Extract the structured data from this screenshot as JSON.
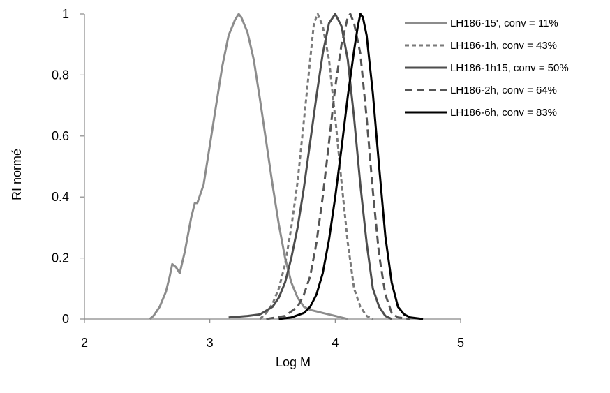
{
  "chart_data": {
    "type": "line",
    "xlabel": "Log M",
    "ylabel": "RI normé",
    "xlim": [
      2,
      5
    ],
    "ylim": [
      0,
      1
    ],
    "x_ticks": [
      "2",
      "3",
      "4",
      "5"
    ],
    "y_ticks": [
      "0",
      "0.2",
      "0.4",
      "0.6",
      "0.8",
      "1"
    ],
    "grid": false,
    "legend_position": "top-right",
    "series": [
      {
        "name": "LH186-15', conv = 11%",
        "color": "#8c8c8c",
        "dash": "solid",
        "points": [
          [
            2.52,
            0.0
          ],
          [
            2.55,
            0.01
          ],
          [
            2.6,
            0.04
          ],
          [
            2.65,
            0.09
          ],
          [
            2.68,
            0.14
          ],
          [
            2.7,
            0.18
          ],
          [
            2.73,
            0.17
          ],
          [
            2.76,
            0.15
          ],
          [
            2.8,
            0.22
          ],
          [
            2.85,
            0.33
          ],
          [
            2.88,
            0.38
          ],
          [
            2.9,
            0.38
          ],
          [
            2.95,
            0.44
          ],
          [
            3.0,
            0.57
          ],
          [
            3.05,
            0.7
          ],
          [
            3.1,
            0.83
          ],
          [
            3.15,
            0.93
          ],
          [
            3.2,
            0.98
          ],
          [
            3.23,
            1.0
          ],
          [
            3.25,
            0.99
          ],
          [
            3.3,
            0.94
          ],
          [
            3.35,
            0.85
          ],
          [
            3.4,
            0.72
          ],
          [
            3.45,
            0.58
          ],
          [
            3.5,
            0.44
          ],
          [
            3.55,
            0.31
          ],
          [
            3.6,
            0.2
          ],
          [
            3.65,
            0.12
          ],
          [
            3.7,
            0.07
          ],
          [
            3.75,
            0.04
          ],
          [
            3.8,
            0.03
          ],
          [
            3.85,
            0.025
          ],
          [
            3.9,
            0.02
          ],
          [
            3.95,
            0.015
          ],
          [
            4.0,
            0.01
          ],
          [
            4.05,
            0.005
          ],
          [
            4.1,
            0.0
          ]
        ]
      },
      {
        "name": "LH186-1h, conv = 43%",
        "color": "#7a7a7a",
        "dash": "short",
        "points": [
          [
            3.4,
            0.0
          ],
          [
            3.45,
            0.02
          ],
          [
            3.5,
            0.05
          ],
          [
            3.55,
            0.1
          ],
          [
            3.6,
            0.18
          ],
          [
            3.65,
            0.3
          ],
          [
            3.7,
            0.45
          ],
          [
            3.75,
            0.65
          ],
          [
            3.8,
            0.85
          ],
          [
            3.83,
            0.97
          ],
          [
            3.86,
            1.0
          ],
          [
            3.9,
            0.96
          ],
          [
            3.95,
            0.85
          ],
          [
            4.0,
            0.66
          ],
          [
            4.05,
            0.45
          ],
          [
            4.1,
            0.25
          ],
          [
            4.15,
            0.1
          ],
          [
            4.2,
            0.04
          ],
          [
            4.25,
            0.01
          ],
          [
            4.3,
            0.0
          ]
        ]
      },
      {
        "name": "LH186-1h15, conv = 50%",
        "color": "#4d4d4d",
        "dash": "solid",
        "points": [
          [
            3.15,
            0.005
          ],
          [
            3.3,
            0.01
          ],
          [
            3.4,
            0.015
          ],
          [
            3.5,
            0.04
          ],
          [
            3.55,
            0.07
          ],
          [
            3.6,
            0.12
          ],
          [
            3.65,
            0.2
          ],
          [
            3.7,
            0.3
          ],
          [
            3.75,
            0.43
          ],
          [
            3.8,
            0.58
          ],
          [
            3.85,
            0.73
          ],
          [
            3.9,
            0.87
          ],
          [
            3.95,
            0.97
          ],
          [
            4.0,
            1.0
          ],
          [
            4.05,
            0.96
          ],
          [
            4.1,
            0.85
          ],
          [
            4.15,
            0.66
          ],
          [
            4.2,
            0.44
          ],
          [
            4.25,
            0.25
          ],
          [
            4.3,
            0.1
          ],
          [
            4.35,
            0.04
          ],
          [
            4.4,
            0.01
          ],
          [
            4.45,
            0.0
          ]
        ]
      },
      {
        "name": "LH186-2h, conv = 64%",
        "color": "#555555",
        "dash": "long",
        "points": [
          [
            3.45,
            0.0
          ],
          [
            3.6,
            0.01
          ],
          [
            3.7,
            0.04
          ],
          [
            3.75,
            0.08
          ],
          [
            3.8,
            0.14
          ],
          [
            3.85,
            0.25
          ],
          [
            3.9,
            0.4
          ],
          [
            3.95,
            0.58
          ],
          [
            4.0,
            0.76
          ],
          [
            4.05,
            0.9
          ],
          [
            4.1,
            0.99
          ],
          [
            4.12,
            1.0
          ],
          [
            4.15,
            0.97
          ],
          [
            4.2,
            0.87
          ],
          [
            4.25,
            0.66
          ],
          [
            4.3,
            0.42
          ],
          [
            4.35,
            0.21
          ],
          [
            4.4,
            0.08
          ],
          [
            4.45,
            0.02
          ],
          [
            4.5,
            0.005
          ],
          [
            4.6,
            0.0
          ]
        ]
      },
      {
        "name": "LH186-6h, conv = 83%",
        "color": "#000000",
        "dash": "solid",
        "points": [
          [
            3.55,
            0.0
          ],
          [
            3.65,
            0.005
          ],
          [
            3.75,
            0.02
          ],
          [
            3.8,
            0.04
          ],
          [
            3.85,
            0.08
          ],
          [
            3.9,
            0.15
          ],
          [
            3.95,
            0.26
          ],
          [
            4.0,
            0.4
          ],
          [
            4.05,
            0.56
          ],
          [
            4.1,
            0.73
          ],
          [
            4.15,
            0.88
          ],
          [
            4.18,
            0.96
          ],
          [
            4.2,
            1.0
          ],
          [
            4.22,
            0.99
          ],
          [
            4.25,
            0.93
          ],
          [
            4.3,
            0.74
          ],
          [
            4.35,
            0.5
          ],
          [
            4.4,
            0.27
          ],
          [
            4.45,
            0.12
          ],
          [
            4.5,
            0.04
          ],
          [
            4.55,
            0.015
          ],
          [
            4.6,
            0.005
          ],
          [
            4.7,
            0.0
          ]
        ]
      }
    ]
  }
}
